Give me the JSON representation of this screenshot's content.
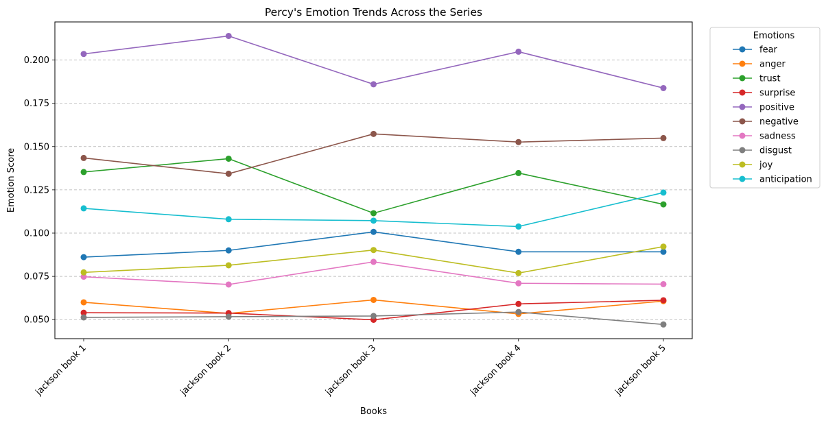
{
  "chart_data": {
    "type": "line",
    "title": "Percy's Emotion Trends Across the Series",
    "xlabel": "Books",
    "ylabel": "Emotion Score",
    "categories": [
      "jackson book 1",
      "jackson book 2",
      "jackson book 3",
      "jackson book 4",
      "jackson book 5"
    ],
    "ylim": [
      0.039,
      0.222
    ],
    "yticks": [
      0.05,
      0.075,
      0.1,
      0.125,
      0.15,
      0.175,
      0.2
    ],
    "ytick_labels": [
      "0.050",
      "0.075",
      "0.100",
      "0.125",
      "0.150",
      "0.175",
      "0.200"
    ],
    "grid": "horizontal dashed",
    "legend": {
      "title": "Emotions",
      "placement": "outside-right"
    },
    "series": [
      {
        "name": "fear",
        "color": "#1f77b4",
        "values": [
          0.0861,
          0.09,
          0.1007,
          0.0892,
          0.0892
        ]
      },
      {
        "name": "anger",
        "color": "#ff7f0e",
        "values": [
          0.06,
          0.0536,
          0.0614,
          0.0533,
          0.0607
        ]
      },
      {
        "name": "trust",
        "color": "#2ca02c",
        "values": [
          0.1353,
          0.143,
          0.1115,
          0.1347,
          0.1166
        ]
      },
      {
        "name": "surprise",
        "color": "#d62728",
        "values": [
          0.054,
          0.0538,
          0.0499,
          0.0591,
          0.0612
        ]
      },
      {
        "name": "positive",
        "color": "#9467bd",
        "values": [
          0.2035,
          0.2139,
          0.186,
          0.2048,
          0.1838
        ]
      },
      {
        "name": "negative",
        "color": "#8c564b",
        "values": [
          0.1434,
          0.1343,
          0.1573,
          0.1526,
          0.1549
        ]
      },
      {
        "name": "sadness",
        "color": "#e377c2",
        "values": [
          0.0748,
          0.0703,
          0.0834,
          0.071,
          0.0705
        ]
      },
      {
        "name": "disgust",
        "color": "#7f7f7f",
        "values": [
          0.0513,
          0.0517,
          0.0521,
          0.0544,
          0.0472
        ]
      },
      {
        "name": "joy",
        "color": "#bcbd22",
        "values": [
          0.0773,
          0.0814,
          0.0902,
          0.0769,
          0.0922
        ]
      },
      {
        "name": "anticipation",
        "color": "#17becf",
        "values": [
          0.1143,
          0.108,
          0.1072,
          0.1038,
          0.1234
        ]
      }
    ]
  }
}
